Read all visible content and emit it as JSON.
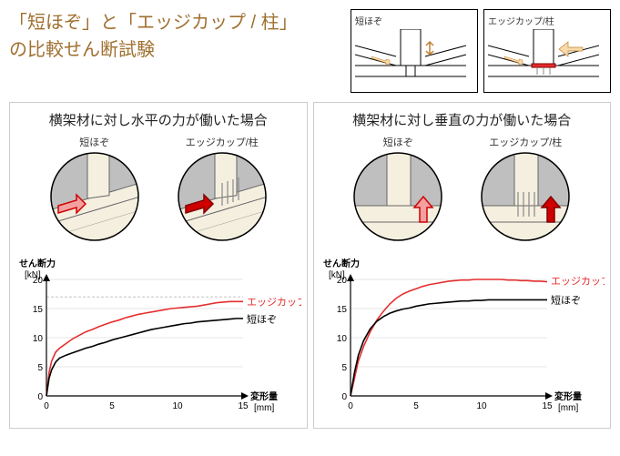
{
  "title": {
    "line1": "「短ほぞ」と「エッジカップ / 柱」",
    "line2": "の比較せん断試験",
    "color": "#a07030",
    "fontsize": 20
  },
  "top_diagrams": {
    "left_label": "短ほぞ",
    "right_label": "エッジカップ/柱",
    "arrow_color_light": "#f9d9a8",
    "arrow_color_red": "#e62e2e",
    "wood_color": "#f5efe0",
    "line_color": "#000000"
  },
  "circles": {
    "label_left": "短ほぞ",
    "label_right": "エッジカップ/柱",
    "wood_color": "#f5efe0",
    "shadow_color": "#bfbfbf",
    "arrow_fill_left": "#f2a0a0",
    "arrow_stroke_left": "#d00000",
    "arrow_fill_right": "#d00000",
    "arrow_stroke_right": "#800000",
    "fastener_color": "#888888"
  },
  "panel_left": {
    "title": "横架材に対し水平の力が働いた場合",
    "chart": {
      "type": "line",
      "y_axis_label": "せん断力",
      "y_unit": "[kN]",
      "x_axis_label": "変形量",
      "x_unit": "[mm]",
      "xlim": [
        0,
        15
      ],
      "ylim": [
        0,
        20
      ],
      "xticks": [
        0,
        5,
        10,
        15
      ],
      "yticks": [
        0,
        5,
        10,
        15,
        20
      ],
      "grid_color": "#cccccc",
      "dashed_grid_color": "#bbbbbb",
      "dashed_y": 17,
      "background_color": "#ffffff",
      "series": [
        {
          "label": "エッジカップ/柱",
          "color": "#e62e2e",
          "label_x": 15,
          "label_y": 16.2,
          "points": [
            [
              0,
              0
            ],
            [
              0.2,
              4
            ],
            [
              0.4,
              6
            ],
            [
              0.7,
              7.5
            ],
            [
              1.0,
              8.2
            ],
            [
              1.5,
              9.0
            ],
            [
              2.0,
              9.8
            ],
            [
              2.5,
              10.4
            ],
            [
              3.0,
              11.0
            ],
            [
              3.5,
              11.4
            ],
            [
              4.0,
              11.9
            ],
            [
              4.5,
              12.3
            ],
            [
              5.0,
              12.7
            ],
            [
              5.5,
              13.0
            ],
            [
              6.0,
              13.4
            ],
            [
              6.5,
              13.7
            ],
            [
              7.0,
              14.0
            ],
            [
              7.5,
              14.2
            ],
            [
              8.0,
              14.4
            ],
            [
              8.5,
              14.6
            ],
            [
              9.0,
              14.8
            ],
            [
              9.5,
              15.0
            ],
            [
              10.0,
              15.1
            ],
            [
              10.5,
              15.2
            ],
            [
              11.0,
              15.3
            ],
            [
              11.5,
              15.4
            ],
            [
              12.0,
              15.6
            ],
            [
              12.5,
              15.8
            ],
            [
              13.0,
              16.0
            ],
            [
              13.5,
              16.1
            ],
            [
              14.0,
              16.2
            ],
            [
              14.5,
              16.2
            ],
            [
              15.0,
              16.2
            ]
          ]
        },
        {
          "label": "短ほぞ",
          "color": "#000000",
          "label_x": 15,
          "label_y": 13.2,
          "points": [
            [
              0,
              0
            ],
            [
              0.2,
              3
            ],
            [
              0.4,
              4.5
            ],
            [
              0.7,
              5.8
            ],
            [
              1.0,
              6.5
            ],
            [
              1.5,
              7.0
            ],
            [
              2.0,
              7.4
            ],
            [
              2.5,
              7.8
            ],
            [
              3.0,
              8.2
            ],
            [
              3.5,
              8.5
            ],
            [
              4.0,
              8.9
            ],
            [
              4.5,
              9.2
            ],
            [
              5.0,
              9.6
            ],
            [
              5.5,
              9.9
            ],
            [
              6.0,
              10.2
            ],
            [
              6.5,
              10.5
            ],
            [
              7.0,
              10.8
            ],
            [
              7.5,
              11.1
            ],
            [
              8.0,
              11.4
            ],
            [
              8.5,
              11.6
            ],
            [
              9.0,
              11.8
            ],
            [
              9.5,
              12.0
            ],
            [
              10.0,
              12.2
            ],
            [
              10.5,
              12.4
            ],
            [
              11.0,
              12.5
            ],
            [
              11.5,
              12.7
            ],
            [
              12.0,
              12.8
            ],
            [
              12.5,
              12.9
            ],
            [
              13.0,
              13.0
            ],
            [
              13.5,
              13.1
            ],
            [
              14.0,
              13.2
            ],
            [
              14.5,
              13.3
            ],
            [
              15.0,
              13.3
            ]
          ]
        }
      ]
    }
  },
  "panel_right": {
    "title": "横架材に対し垂直の力が働いた場合",
    "chart": {
      "type": "line",
      "y_axis_label": "せん断力",
      "y_unit": "[kN]",
      "x_axis_label": "変形量",
      "x_unit": "[mm]",
      "xlim": [
        0,
        15
      ],
      "ylim": [
        0,
        20
      ],
      "xticks": [
        0,
        5,
        10,
        15
      ],
      "yticks": [
        0,
        5,
        10,
        15,
        20
      ],
      "grid_color": "#cccccc",
      "background_color": "#ffffff",
      "series": [
        {
          "label": "エッジカップ/柱",
          "color": "#e62e2e",
          "label_x": 15,
          "label_y": 19.8,
          "points": [
            [
              0,
              0
            ],
            [
              0.3,
              3
            ],
            [
              0.6,
              6
            ],
            [
              1.0,
              8.5
            ],
            [
              1.5,
              11.0
            ],
            [
              2.0,
              13.0
            ],
            [
              2.5,
              14.5
            ],
            [
              3.0,
              15.8
            ],
            [
              3.5,
              16.8
            ],
            [
              4.0,
              17.5
            ],
            [
              4.5,
              18.0
            ],
            [
              5.0,
              18.4
            ],
            [
              5.5,
              18.8
            ],
            [
              6.0,
              19.1
            ],
            [
              6.5,
              19.3
            ],
            [
              7.0,
              19.5
            ],
            [
              7.5,
              19.7
            ],
            [
              8.0,
              19.8
            ],
            [
              8.5,
              19.9
            ],
            [
              9.0,
              19.9
            ],
            [
              9.5,
              20.0
            ],
            [
              10.0,
              20.0
            ],
            [
              10.5,
              20.0
            ],
            [
              11.0,
              20.0
            ],
            [
              11.5,
              20.0
            ],
            [
              12.0,
              19.9
            ],
            [
              12.5,
              19.9
            ],
            [
              13.0,
              19.8
            ],
            [
              13.5,
              19.8
            ],
            [
              14.0,
              19.7
            ],
            [
              14.5,
              19.7
            ],
            [
              15.0,
              19.6
            ]
          ]
        },
        {
          "label": "短ほぞ",
          "color": "#000000",
          "label_x": 15,
          "label_y": 16.5,
          "points": [
            [
              0,
              0
            ],
            [
              0.3,
              4
            ],
            [
              0.6,
              7
            ],
            [
              1.0,
              9.5
            ],
            [
              1.5,
              11.5
            ],
            [
              2.0,
              12.8
            ],
            [
              2.5,
              13.6
            ],
            [
              3.0,
              14.2
            ],
            [
              3.5,
              14.6
            ],
            [
              4.0,
              14.9
            ],
            [
              4.5,
              15.1
            ],
            [
              5.0,
              15.4
            ],
            [
              5.5,
              15.6
            ],
            [
              6.0,
              15.8
            ],
            [
              6.5,
              15.9
            ],
            [
              7.0,
              16.0
            ],
            [
              7.5,
              16.1
            ],
            [
              8.0,
              16.2
            ],
            [
              8.5,
              16.3
            ],
            [
              9.0,
              16.3
            ],
            [
              9.5,
              16.4
            ],
            [
              10.0,
              16.4
            ],
            [
              10.5,
              16.5
            ],
            [
              11.0,
              16.5
            ],
            [
              11.5,
              16.5
            ],
            [
              12.0,
              16.5
            ],
            [
              12.5,
              16.5
            ],
            [
              13.0,
              16.5
            ],
            [
              13.5,
              16.5
            ],
            [
              14.0,
              16.5
            ],
            [
              14.5,
              16.5
            ],
            [
              15.0,
              16.5
            ]
          ]
        }
      ]
    }
  }
}
